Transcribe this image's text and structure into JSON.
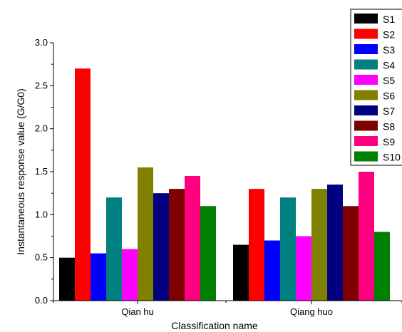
{
  "chart_data": {
    "type": "bar",
    "xlabel": "Classification name",
    "ylabel": "Instantaneous response value (G/G0)",
    "categories": [
      "Qian hu",
      "Qiang huo"
    ],
    "ylim": [
      0,
      3.0
    ],
    "yticks": [
      "0.0",
      "0.5",
      "1.0",
      "1.5",
      "2.0",
      "2.5",
      "3.0"
    ],
    "legend_position": "top-right",
    "grid": false,
    "series": [
      {
        "name": "S1",
        "color": "#000000",
        "values": [
          0.5,
          0.65
        ]
      },
      {
        "name": "S2",
        "color": "#ff0000",
        "values": [
          2.7,
          1.3
        ]
      },
      {
        "name": "S3",
        "color": "#0000ff",
        "values": [
          0.55,
          0.7
        ]
      },
      {
        "name": "S4",
        "color": "#008080",
        "values": [
          1.2,
          1.2
        ]
      },
      {
        "name": "S5",
        "color": "#ff00ff",
        "values": [
          0.6,
          0.75
        ]
      },
      {
        "name": "S6",
        "color": "#808000",
        "values": [
          1.55,
          1.3
        ]
      },
      {
        "name": "S7",
        "color": "#000080",
        "values": [
          1.25,
          1.35
        ]
      },
      {
        "name": "S8",
        "color": "#800000",
        "values": [
          1.3,
          1.1
        ]
      },
      {
        "name": "S9",
        "color": "#ff0080",
        "values": [
          1.45,
          1.5
        ]
      },
      {
        "name": "S10",
        "color": "#008000",
        "values": [
          1.1,
          0.8
        ]
      }
    ]
  }
}
